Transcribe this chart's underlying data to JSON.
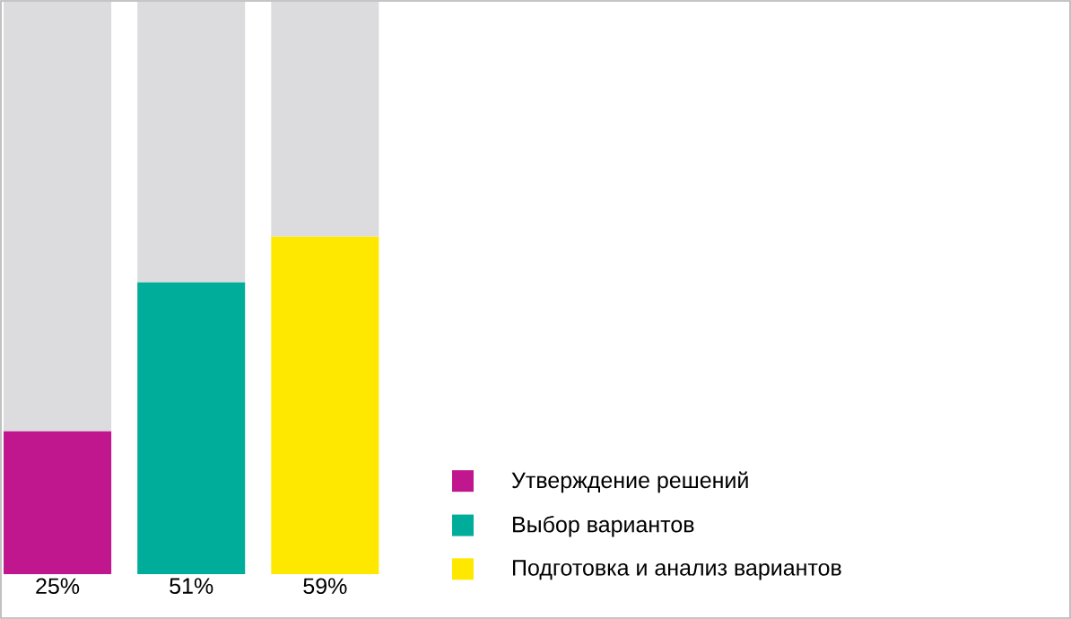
{
  "chart_data": {
    "type": "bar",
    "stacked": true,
    "categories": [
      null,
      null,
      null
    ],
    "series": [
      {
        "name": "Утверждение решений",
        "color": "#c0168e",
        "values": [
          25,
          null,
          null
        ],
        "value_labels": [
          "25%",
          null,
          null
        ]
      },
      {
        "name": "Выбор вариантов",
        "color": "#00ad9a",
        "values": [
          null,
          51,
          null
        ],
        "value_labels": [
          null,
          "51%",
          null
        ]
      },
      {
        "name": "Подготовка и анализ вариантов",
        "color": "#ffe800",
        "values": [
          null,
          null,
          59
        ],
        "value_labels": [
          null,
          null,
          "59%"
        ]
      },
      {
        "color": "#dcdcdf",
        "values": [
          75,
          49,
          41
        ]
      }
    ],
    "ylim": [
      0,
      100
    ],
    "legend": "bottom right"
  }
}
